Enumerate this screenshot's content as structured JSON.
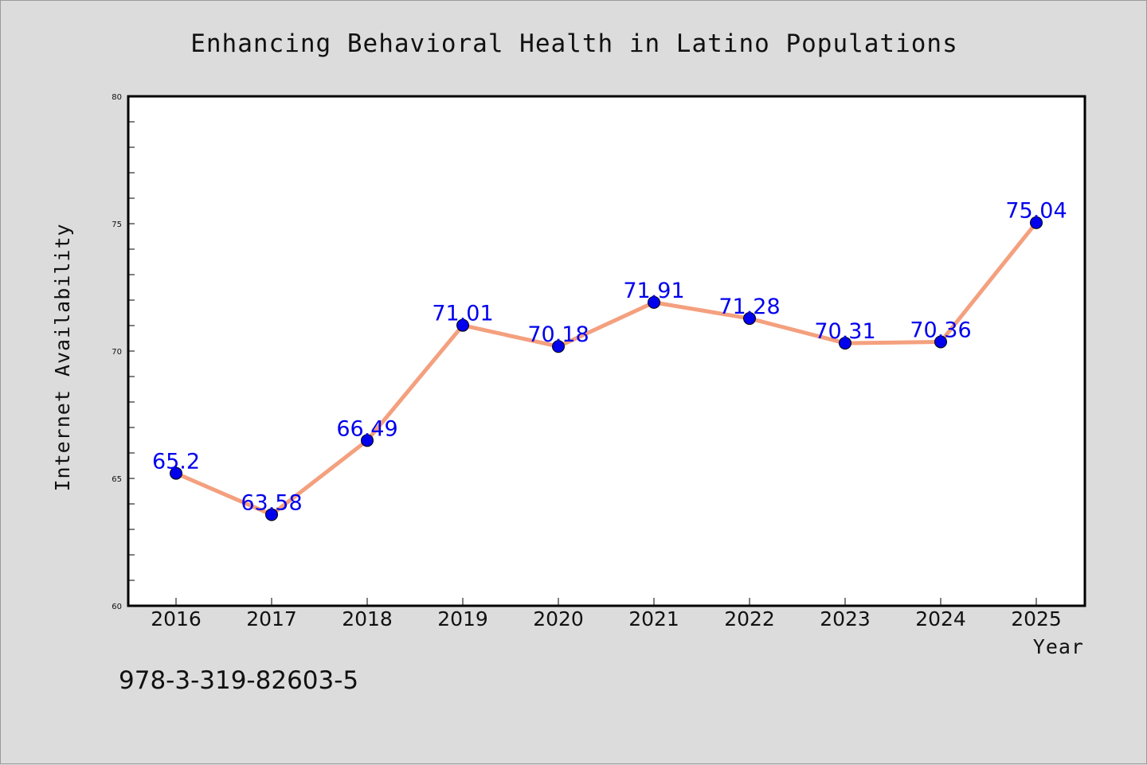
{
  "footnote": "978-3-319-82603-5",
  "colors": {
    "background": "#dcdcdc",
    "plot_background": "#ffffff",
    "line": "#f4a07e",
    "marker": "#0000ee",
    "label": "#0000ee"
  },
  "chart_data": {
    "type": "line",
    "title": "Enhancing Behavioral Health in Latino Populations",
    "xlabel": "Year",
    "ylabel": "Internet Availability",
    "categories": [
      "2016",
      "2017",
      "2018",
      "2019",
      "2020",
      "2021",
      "2022",
      "2023",
      "2024",
      "2025"
    ],
    "values": [
      65.2,
      63.58,
      66.49,
      71.01,
      70.18,
      71.91,
      71.28,
      70.31,
      70.36,
      75.04
    ],
    "data_labels": [
      "65.2",
      "63.58",
      "66.49",
      "71.01",
      "70.18",
      "71.91",
      "71.28",
      "70.31",
      "70.36",
      "75.04"
    ],
    "ylim": [
      60,
      80
    ],
    "yticks": [
      "60",
      "65",
      "70",
      "75",
      "80"
    ],
    "y_minor_step": 1,
    "grid": false,
    "legend": "none"
  }
}
